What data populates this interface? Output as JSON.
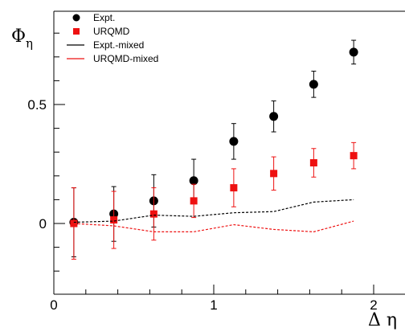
{
  "chart_data": {
    "type": "scatter",
    "xlabel": "Δ η",
    "ylabel": "Φ",
    "ylabel_subscript": "η",
    "xlim": [
      0,
      2.2
    ],
    "ylim": [
      -0.3,
      0.92
    ],
    "x_ticks": [
      0,
      1,
      2
    ],
    "x_tick_labels": [
      "0",
      "1",
      "2"
    ],
    "y_ticks": [
      0,
      0.5
    ],
    "y_tick_labels": [
      "0",
      "0.5"
    ],
    "grid": false,
    "legend_position": "top-left",
    "series": [
      {
        "name": "Expt.",
        "style": "marker-circle",
        "color": "#000000",
        "x": [
          0.125,
          0.375,
          0.625,
          0.875,
          1.125,
          1.375,
          1.625,
          1.875
        ],
        "y": [
          0.005,
          0.04,
          0.095,
          0.18,
          0.345,
          0.45,
          0.585,
          0.72
        ],
        "err": [
          0.145,
          0.115,
          0.11,
          0.09,
          0.075,
          0.065,
          0.055,
          0.05
        ]
      },
      {
        "name": "URQMD",
        "style": "marker-square",
        "color": "#ee1111",
        "x": [
          0.125,
          0.375,
          0.625,
          0.875,
          1.125,
          1.375,
          1.625,
          1.875
        ],
        "y": [
          0.0,
          0.015,
          0.04,
          0.095,
          0.15,
          0.21,
          0.255,
          0.285
        ],
        "err": [
          0.15,
          0.12,
          0.11,
          0.07,
          0.08,
          0.07,
          0.06,
          0.055
        ]
      },
      {
        "name": "Expt.-mixed",
        "style": "dashed-line",
        "color": "#000000",
        "x": [
          0.125,
          0.375,
          0.625,
          0.875,
          1.125,
          1.375,
          1.625,
          1.875
        ],
        "y": [
          0.005,
          0.01,
          0.035,
          0.03,
          0.045,
          0.05,
          0.09,
          0.1
        ]
      },
      {
        "name": "URQMD-mixed",
        "style": "dashed-line",
        "color": "#ee1111",
        "x": [
          0.125,
          0.375,
          0.625,
          0.875,
          1.125,
          1.375,
          1.625,
          1.875
        ],
        "y": [
          0.0,
          -0.01,
          -0.035,
          -0.035,
          -0.005,
          -0.025,
          -0.035,
          0.01
        ]
      }
    ]
  }
}
